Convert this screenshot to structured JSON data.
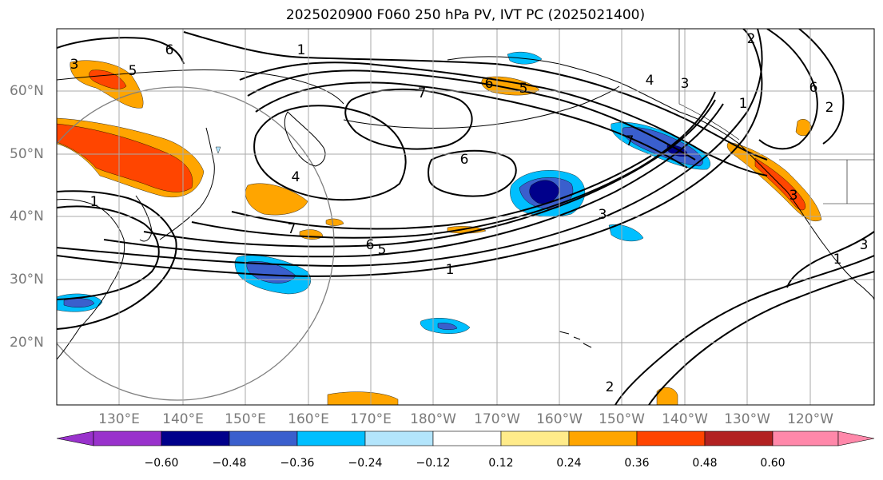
{
  "title": "2025020900 F060 250 hPa PV, IVT PC (2025021400)",
  "latitude_labels": [
    "60°N",
    "50°N",
    "40°N",
    "30°N",
    "20°N"
  ],
  "longitude_labels": [
    "130°E",
    "140°E",
    "150°E",
    "160°E",
    "170°E",
    "180°W",
    "170°W",
    "160°W",
    "150°W",
    "140°W",
    "130°W",
    "120°W"
  ],
  "colorbar": {
    "ticks": [
      "−0.60",
      "−0.48",
      "−0.36",
      "−0.24",
      "−0.12",
      "0.12",
      "0.24",
      "0.36",
      "0.48",
      "0.60"
    ],
    "colors": [
      "#9932cc",
      "#00008b",
      "#3a5fcd",
      "#00bfff",
      "#b3e5fc",
      "#ffffff",
      "#ffeb8a",
      "#ffa500",
      "#ff4500",
      "#b22222",
      "#ff88aa"
    ]
  },
  "contour_labels": [
    "1",
    "5",
    "6",
    "3",
    "2",
    "1",
    "7",
    "4",
    "6",
    "7",
    "3",
    "6",
    "5",
    "1",
    "2",
    "1",
    "4",
    "6",
    "7",
    "3",
    "2",
    "3",
    "5",
    "6",
    "1",
    "3"
  ]
}
